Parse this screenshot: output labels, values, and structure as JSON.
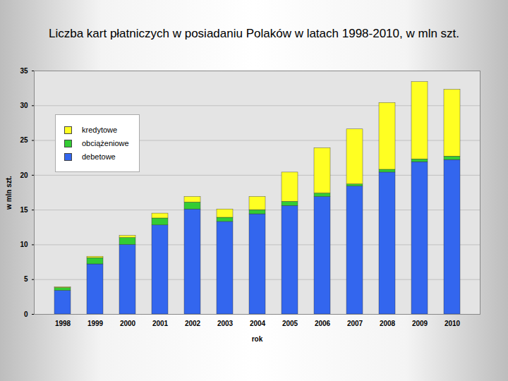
{
  "chart_data": {
    "type": "bar",
    "title": "Liczba kart płatniczych w posiadaniu Polaków w latach 1998-2010, w mln szt.",
    "x_label": "rok",
    "y_label": "w mln szt.",
    "categories": [
      "1998",
      "1999",
      "2000",
      "2001",
      "2002",
      "2003",
      "2004",
      "2005",
      "2006",
      "2007",
      "2008",
      "2009",
      "2010"
    ],
    "series": [
      {
        "name": "debetowe",
        "color": "#3366ee",
        "values": [
          3.4,
          7.2,
          10.0,
          12.8,
          15.1,
          13.3,
          14.4,
          15.6,
          16.9,
          18.4,
          20.4,
          21.9,
          22.2
        ]
      },
      {
        "name": "obciążeniowe",
        "color": "#33cc33",
        "values": [
          0.4,
          0.9,
          1.0,
          1.0,
          1.0,
          0.6,
          0.6,
          0.6,
          0.5,
          0.3,
          0.4,
          0.4,
          0.5
        ]
      },
      {
        "name": "kredytowe",
        "color": "#ffff22",
        "values": [
          0.1,
          0.2,
          0.3,
          0.7,
          0.8,
          1.2,
          1.9,
          4.2,
          6.5,
          7.9,
          9.6,
          11.1,
          9.6
        ]
      }
    ],
    "stacked": true,
    "ylim": [
      0,
      35
    ],
    "yticks": [
      0,
      5,
      10,
      15,
      20,
      25,
      30,
      35
    ],
    "grid": true,
    "legend": "upper-left"
  }
}
